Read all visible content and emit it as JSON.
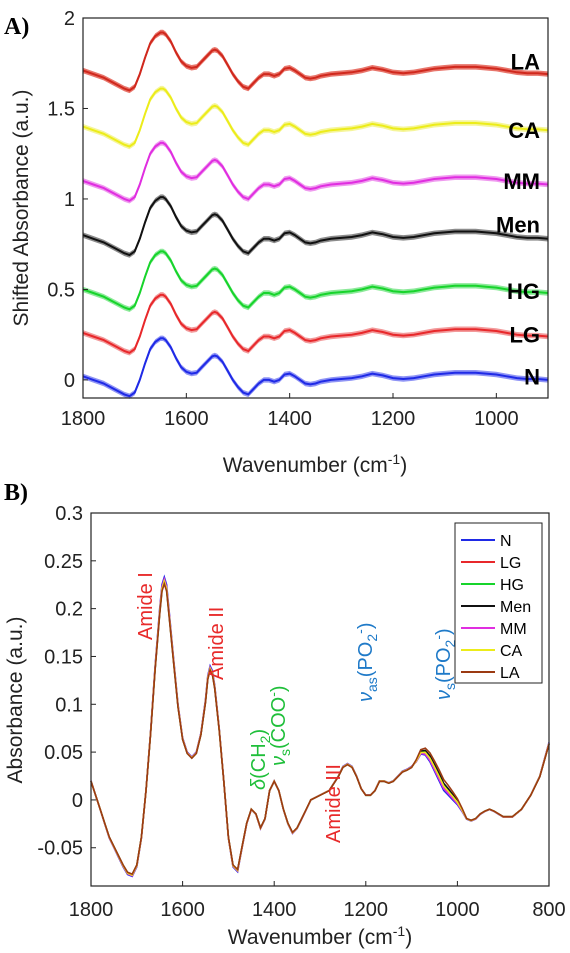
{
  "panels": {
    "a": {
      "label": "A)"
    },
    "b": {
      "label": "B)"
    }
  },
  "chart_data": [
    {
      "type": "line",
      "panel": "A)",
      "xlabel_main": "Wavenumber (cm",
      "xlabel_sup": "-1",
      "xlabel_end": ")",
      "ylabel": "Shifted Absorbance (a.u.)",
      "xlim": [
        1800,
        900
      ],
      "ylim": [
        -0.1,
        2.0
      ],
      "x_reversed": true,
      "xticks": [
        1800,
        1600,
        1400,
        1200,
        1000
      ],
      "yticks": [
        0,
        0.5,
        1,
        1.5,
        2
      ],
      "ytick_labels": [
        "0",
        "0.5",
        "1",
        "1.5",
        "2"
      ],
      "grid": false,
      "shaded_band": true,
      "series": [
        {
          "name": "N",
          "color": "#1f2ae6",
          "band": "#8f94f5",
          "offset": 0.0,
          "tag_y": 0.02
        },
        {
          "name": "LG",
          "color": "#e8282b",
          "band": "#f29a9b",
          "offset": 0.24,
          "tag_y": 0.25
        },
        {
          "name": "HG",
          "color": "#17d42b",
          "band": "#8de99a",
          "offset": 0.48,
          "tag_y": 0.49
        },
        {
          "name": "Men",
          "color": "#111111",
          "band": "#8c8c8c",
          "offset": 0.78,
          "tag_y": 0.86
        },
        {
          "name": "MM",
          "color": "#e02ee0",
          "band": "#ef9aef",
          "offset": 1.08,
          "tag_y": 1.1
        },
        {
          "name": "CA",
          "color": "#ecec1a",
          "band": "#f5f59a",
          "offset": 1.38,
          "tag_y": 1.38
        },
        {
          "name": "LA",
          "color": "#d0281d",
          "band": "#e8756b",
          "offset": 1.69,
          "tag_y": 1.76
        }
      ],
      "shape": {
        "x": [
          1800,
          1780,
          1760,
          1740,
          1720,
          1710,
          1700,
          1690,
          1680,
          1670,
          1660,
          1650,
          1645,
          1640,
          1630,
          1620,
          1610,
          1600,
          1590,
          1580,
          1570,
          1560,
          1550,
          1545,
          1540,
          1530,
          1520,
          1510,
          1500,
          1490,
          1480,
          1470,
          1460,
          1450,
          1440,
          1430,
          1420,
          1410,
          1400,
          1390,
          1380,
          1370,
          1360,
          1350,
          1340,
          1320,
          1300,
          1280,
          1260,
          1240,
          1220,
          1200,
          1180,
          1160,
          1140,
          1120,
          1100,
          1080,
          1060,
          1040,
          1020,
          1000,
          980,
          960,
          940,
          920,
          900
        ],
        "y": [
          0.02,
          0.0,
          -0.02,
          -0.05,
          -0.08,
          -0.09,
          -0.07,
          0.0,
          0.09,
          0.17,
          0.21,
          0.23,
          0.23,
          0.22,
          0.18,
          0.12,
          0.07,
          0.045,
          0.035,
          0.04,
          0.07,
          0.1,
          0.13,
          0.135,
          0.13,
          0.1,
          0.05,
          0.0,
          -0.04,
          -0.07,
          -0.08,
          -0.05,
          -0.02,
          0.0,
          0.0,
          -0.01,
          0.0,
          0.03,
          0.035,
          0.02,
          0.0,
          -0.02,
          -0.025,
          -0.02,
          -0.01,
          0.0,
          0.005,
          0.01,
          0.02,
          0.035,
          0.025,
          0.01,
          0.005,
          0.01,
          0.02,
          0.03,
          0.035,
          0.04,
          0.04,
          0.04,
          0.035,
          0.03,
          0.02,
          0.01,
          0.005,
          0.005,
          0.0
        ],
        "band_halfwidth": 0.015
      }
    },
    {
      "type": "line",
      "panel": "B)",
      "xlabel_main": "Wavenumber (cm",
      "xlabel_sup": "-1",
      "xlabel_end": ")",
      "ylabel": "Absorbance (a.u.)",
      "xlim": [
        1800,
        800
      ],
      "ylim": [
        -0.09,
        0.3
      ],
      "x_reversed": true,
      "xticks": [
        1800,
        1600,
        1400,
        1200,
        1000,
        800
      ],
      "yticks": [
        -0.05,
        0,
        0.05,
        0.1,
        0.15,
        0.2,
        0.25,
        0.3
      ],
      "ytick_labels": [
        "-0.05",
        "0",
        "0.05",
        "0.1",
        "0.15",
        "0.2",
        "0.25",
        "0.3"
      ],
      "grid": false,
      "legend_position": "top-right",
      "series": [
        {
          "name": "N",
          "color": "#1f2ae6"
        },
        {
          "name": "LG",
          "color": "#e8282b"
        },
        {
          "name": "HG",
          "color": "#17d42b"
        },
        {
          "name": "Men",
          "color": "#111111"
        },
        {
          "name": "MM",
          "color": "#e02ee0"
        },
        {
          "name": "CA",
          "color": "#ecec1a"
        },
        {
          "name": "LA",
          "color": "#9b3a12"
        }
      ],
      "spectrum": {
        "x": [
          1800,
          1790,
          1780,
          1770,
          1760,
          1750,
          1740,
          1730,
          1720,
          1710,
          1700,
          1690,
          1680,
          1670,
          1660,
          1650,
          1645,
          1640,
          1635,
          1630,
          1620,
          1610,
          1600,
          1590,
          1580,
          1570,
          1560,
          1550,
          1545,
          1540,
          1535,
          1530,
          1520,
          1510,
          1500,
          1490,
          1480,
          1470,
          1460,
          1450,
          1440,
          1430,
          1420,
          1410,
          1400,
          1390,
          1380,
          1370,
          1360,
          1350,
          1340,
          1330,
          1320,
          1300,
          1280,
          1260,
          1250,
          1240,
          1230,
          1220,
          1210,
          1200,
          1190,
          1180,
          1170,
          1160,
          1150,
          1140,
          1130,
          1120,
          1110,
          1100,
          1090,
          1080,
          1070,
          1060,
          1050,
          1040,
          1030,
          1020,
          1010,
          1000,
          990,
          980,
          970,
          960,
          950,
          940,
          930,
          920,
          910,
          900,
          880,
          860,
          840,
          820,
          800
        ],
        "y": [
          0.02,
          0.005,
          -0.01,
          -0.025,
          -0.04,
          -0.05,
          -0.06,
          -0.07,
          -0.078,
          -0.08,
          -0.07,
          -0.04,
          0.01,
          0.07,
          0.14,
          0.2,
          0.225,
          0.233,
          0.225,
          0.2,
          0.15,
          0.1,
          0.065,
          0.05,
          0.045,
          0.05,
          0.07,
          0.105,
          0.13,
          0.14,
          0.135,
          0.12,
          0.075,
          0.02,
          -0.04,
          -0.07,
          -0.075,
          -0.05,
          -0.025,
          -0.01,
          -0.015,
          -0.03,
          -0.02,
          0.01,
          0.02,
          0.01,
          -0.01,
          -0.025,
          -0.035,
          -0.03,
          -0.02,
          -0.01,
          0.0,
          0.005,
          0.01,
          0.025,
          0.035,
          0.038,
          0.035,
          0.025,
          0.012,
          0.005,
          0.005,
          0.01,
          0.02,
          0.02,
          0.018,
          0.02,
          0.025,
          0.03,
          0.032,
          0.035,
          0.04,
          0.048,
          0.047,
          0.04,
          0.03,
          0.02,
          0.01,
          0.005,
          0.0,
          -0.005,
          -0.012,
          -0.02,
          -0.022,
          -0.02,
          -0.015,
          -0.012,
          -0.01,
          -0.012,
          -0.015,
          -0.018,
          -0.018,
          -0.01,
          0.005,
          0.025,
          0.06
        ]
      },
      "annotations": [
        {
          "id": "amide1",
          "text": "Amide I",
          "color": "#e82a2a"
        },
        {
          "id": "amide2",
          "text": "Amide II",
          "color": "#e82a2a"
        },
        {
          "id": "amide3",
          "text": "Amide III",
          "color": "#e82a2a"
        },
        {
          "id": "ch2",
          "delta": "δ",
          "main": "(CH",
          "sub": "2",
          "end": ")",
          "color": "#1fbf3a"
        },
        {
          "id": "coo",
          "nu": "ν",
          "sub": "s",
          "main": "(COO",
          "sup": "-",
          "end": ")",
          "color": "#1fbf3a"
        },
        {
          "id": "po2as",
          "nu": "ν",
          "sub": "as",
          "main": "(PO",
          "sub2": "2",
          "sup": "-",
          "end": ")",
          "color": "#1f7ac8"
        },
        {
          "id": "po2s",
          "nu": "ν",
          "sub": "s",
          "main": "(PO",
          "sub2": "2",
          "sup": "-",
          "end": ")",
          "color": "#1f7ac8"
        }
      ]
    }
  ]
}
